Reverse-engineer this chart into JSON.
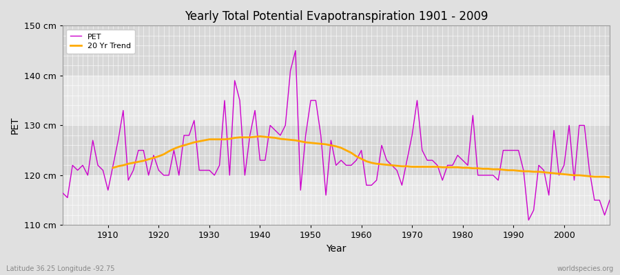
{
  "title": "Yearly Total Potential Evapotranspiration 1901 - 2009",
  "xlabel": "Year",
  "ylabel": "PET",
  "xlim": [
    1901,
    2009
  ],
  "ylim": [
    110,
    150
  ],
  "yticks": [
    110,
    120,
    130,
    140,
    150
  ],
  "ytick_labels": [
    "110 cm",
    "120 cm",
    "130 cm",
    "140 cm",
    "150 cm"
  ],
  "xticks": [
    1910,
    1920,
    1930,
    1940,
    1950,
    1960,
    1970,
    1980,
    1990,
    2000
  ],
  "bg_color": "#e0e0e0",
  "plot_bg_color": "#e8e8e8",
  "band_color_light": "#e8e8e8",
  "band_color_dark": "#d8d8d8",
  "grid_color": "#ffffff",
  "pet_color": "#cc00cc",
  "trend_color": "#ffaa00",
  "footer_left": "Latitude 36.25 Longitude -92.75",
  "footer_right": "worldspecies.org",
  "pet_values": [
    116.5,
    115.5,
    122,
    121,
    122,
    120,
    127,
    122,
    121,
    117,
    122,
    127,
    133,
    119,
    121,
    125,
    125,
    120,
    124,
    121,
    120,
    120,
    125,
    120,
    128,
    128,
    131,
    121,
    121,
    121,
    120,
    122,
    135,
    120,
    139,
    135,
    120,
    128,
    133,
    123,
    123,
    130,
    129,
    128,
    130,
    141,
    145,
    117,
    128,
    135,
    135,
    128,
    116,
    127,
    122,
    123,
    122,
    122,
    123,
    125,
    118,
    118,
    119,
    126,
    123,
    122,
    121,
    118,
    123,
    128,
    135,
    125,
    123,
    123,
    122,
    119,
    122,
    122,
    124,
    123,
    122,
    132,
    120,
    120,
    120,
    120,
    119,
    125,
    125,
    125,
    125,
    121,
    111,
    113,
    122,
    121,
    116,
    129,
    120,
    122,
    130,
    119,
    130,
    130,
    121,
    115,
    115,
    112,
    115
  ],
  "trend_values": [
    null,
    null,
    null,
    null,
    null,
    null,
    null,
    null,
    null,
    null,
    121.5,
    121.8,
    122.0,
    122.3,
    122.5,
    122.7,
    122.9,
    123.2,
    123.5,
    123.8,
    124.2,
    124.8,
    125.3,
    125.7,
    126.0,
    126.3,
    126.6,
    126.8,
    127.0,
    127.2,
    127.2,
    127.2,
    127.2,
    127.3,
    127.5,
    127.6,
    127.6,
    127.6,
    127.7,
    127.8,
    127.7,
    127.6,
    127.5,
    127.3,
    127.2,
    127.1,
    127.0,
    126.8,
    126.6,
    126.5,
    126.4,
    126.3,
    126.2,
    126.0,
    125.8,
    125.5,
    125.0,
    124.5,
    123.8,
    123.3,
    122.8,
    122.5,
    122.3,
    122.2,
    122.1,
    122.0,
    121.9,
    121.8,
    121.8,
    121.7,
    121.7,
    121.7,
    121.7,
    121.7,
    121.7,
    121.6,
    121.6,
    121.6,
    121.6,
    121.5,
    121.5,
    121.4,
    121.4,
    121.3,
    121.3,
    121.2,
    121.2,
    121.1,
    121.0,
    121.0,
    120.9,
    120.8,
    120.8,
    120.7,
    120.7,
    120.6,
    120.5,
    120.4,
    120.3,
    120.2,
    120.1,
    120.0,
    120.0,
    119.9,
    119.8,
    119.7,
    119.7,
    119.7,
    119.6
  ]
}
